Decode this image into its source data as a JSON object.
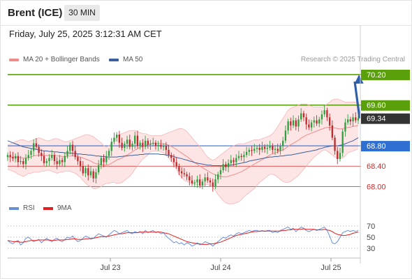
{
  "header": {
    "instrument": "Brent (ICE)",
    "interval": "30 MIN",
    "datetime": "Friday, July 25, 2025 3:12:31 AM CET"
  },
  "legend": {
    "ma20": {
      "label": "MA 20 + Bollinger Bands",
      "color": "#f08c8c"
    },
    "ma50": {
      "label": "MA 50",
      "color": "#3a5f9c"
    },
    "credit": "Research © 2025 Trading Central"
  },
  "rsi_legend": {
    "rsi": {
      "label": "RSI",
      "color": "#6a8fd8"
    },
    "ma9": {
      "label": "9MA",
      "color": "#e02020"
    }
  },
  "colors": {
    "resistance": "#5aa00a",
    "current": "#333333",
    "pivot": "#2f6fd1",
    "support": "#cc2b2b",
    "candle_up": "#2e9e3e",
    "candle_down": "#c0282a",
    "band_fill": "#fde0e0",
    "arrow": "#2f5fa8"
  },
  "chart_data": [
    {
      "type": "candlestick",
      "title": "",
      "ylim": [
        67.8,
        70.35
      ],
      "x_ticks": [
        "Jul 23",
        "Jul 24",
        "Jul 25"
      ],
      "levels": [
        {
          "value": 70.2,
          "label": "70.20",
          "kind": "resistance"
        },
        {
          "value": 69.6,
          "label": "69.60",
          "kind": "resistance"
        },
        {
          "value": 69.34,
          "label": "69.34",
          "kind": "current"
        },
        {
          "value": 68.8,
          "label": "68.80",
          "kind": "pivot"
        },
        {
          "value": 68.4,
          "label": "68.40",
          "kind": "support"
        },
        {
          "value": 68.0,
          "label": "68.00",
          "kind": "support"
        }
      ],
      "close": [
        68.62,
        68.58,
        68.55,
        68.6,
        68.48,
        68.5,
        68.44,
        68.56,
        68.62,
        68.7,
        68.85,
        68.78,
        68.66,
        68.6,
        68.46,
        68.5,
        68.56,
        68.62,
        68.5,
        68.44,
        68.52,
        68.48,
        68.6,
        68.7,
        68.82,
        68.7,
        68.58,
        68.5,
        68.4,
        68.26,
        68.36,
        68.22,
        68.3,
        68.16,
        68.28,
        68.42,
        68.56,
        68.48,
        68.6,
        68.7,
        68.88,
        68.96,
        69.02,
        68.86,
        68.76,
        68.84,
        68.92,
        68.78,
        68.84,
        69.0,
        68.8,
        68.86,
        68.78,
        68.9,
        68.82,
        68.84,
        68.86,
        68.8,
        68.82,
        68.78,
        68.8,
        68.72,
        68.62,
        68.56,
        68.48,
        68.4,
        68.3,
        68.26,
        68.24,
        68.2,
        68.12,
        68.06,
        68.08,
        68.14,
        68.02,
        68.1,
        68.18,
        68.12,
        68.08,
        68.0,
        68.14,
        68.24,
        68.32,
        68.44,
        68.38,
        68.46,
        68.52,
        68.48,
        68.56,
        68.6,
        68.58,
        68.62,
        68.68,
        68.72,
        68.7,
        68.74,
        68.76,
        68.72,
        68.78,
        68.74,
        68.76,
        68.8,
        68.72,
        68.74,
        68.7,
        68.8,
        68.9,
        69.1,
        69.28,
        69.2,
        69.3,
        69.18,
        69.32,
        69.44,
        69.36,
        69.22,
        69.16,
        69.26,
        69.3,
        69.24,
        69.32,
        69.42,
        69.5,
        69.36,
        69.2,
        68.96,
        68.7,
        68.54,
        68.66,
        69.08,
        69.26,
        69.32,
        69.28,
        69.36,
        69.3,
        69.34
      ],
      "ma20": [
        68.58,
        68.58,
        68.58,
        68.58,
        68.57,
        68.57,
        68.56,
        68.56,
        68.57,
        68.58,
        68.6,
        68.61,
        68.62,
        68.62,
        68.61,
        68.61,
        68.61,
        68.61,
        68.61,
        68.6,
        68.6,
        68.59,
        68.59,
        68.59,
        68.6,
        68.6,
        68.6,
        68.59,
        68.58,
        68.56,
        68.54,
        68.52,
        68.5,
        68.47,
        68.45,
        68.44,
        68.43,
        68.42,
        68.42,
        68.43,
        68.46,
        68.49,
        68.52,
        68.54,
        68.56,
        68.59,
        68.62,
        68.65,
        68.68,
        68.72,
        68.74,
        68.77,
        68.79,
        68.81,
        68.82,
        68.84,
        68.85,
        68.85,
        68.85,
        68.84,
        68.84,
        68.83,
        68.81,
        68.79,
        68.76,
        68.73,
        68.69,
        68.66,
        68.62,
        68.59,
        68.55,
        68.51,
        68.47,
        68.44,
        68.4,
        68.37,
        68.34,
        68.31,
        68.28,
        68.25,
        68.23,
        68.21,
        68.2,
        68.19,
        68.19,
        68.2,
        68.22,
        68.23,
        68.25,
        68.27,
        68.29,
        68.32,
        68.35,
        68.38,
        68.41,
        68.44,
        68.47,
        68.5,
        68.53,
        68.56,
        68.59,
        68.62,
        68.64,
        68.66,
        68.68,
        68.7,
        68.72,
        68.75,
        68.79,
        68.82,
        68.85,
        68.88,
        68.91,
        68.95,
        68.98,
        69.01,
        69.03,
        69.05,
        69.07,
        69.09,
        69.11,
        69.13,
        69.15,
        69.16,
        69.16,
        69.16,
        69.15,
        69.14,
        69.13,
        69.14,
        69.15,
        69.16,
        69.17,
        69.18,
        69.19,
        69.2
      ],
      "upper_band": [
        68.82,
        68.84,
        68.86,
        68.88,
        68.9,
        68.92,
        68.92,
        68.9,
        68.88,
        68.9,
        68.92,
        68.94,
        68.96,
        68.94,
        68.92,
        68.9,
        68.9,
        68.92,
        68.94,
        68.94,
        68.92,
        68.9,
        68.88,
        68.88,
        68.9,
        68.92,
        68.94,
        68.96,
        68.98,
        69.0,
        69.02,
        69.02,
        69.0,
        68.98,
        68.94,
        68.9,
        68.86,
        68.8,
        68.78,
        68.8,
        68.84,
        68.9,
        68.98,
        69.02,
        69.04,
        69.06,
        69.08,
        69.1,
        69.1,
        69.1,
        69.08,
        69.06,
        69.04,
        69.04,
        69.02,
        69.0,
        69.0,
        69.0,
        69.0,
        69.0,
        69.02,
        69.04,
        69.06,
        69.08,
        69.1,
        69.12,
        69.14,
        69.14,
        69.12,
        69.08,
        69.02,
        68.96,
        68.9,
        68.84,
        68.78,
        68.72,
        68.64,
        68.58,
        68.54,
        68.52,
        68.54,
        68.58,
        68.62,
        68.66,
        68.7,
        68.74,
        68.78,
        68.8,
        68.82,
        68.84,
        68.84,
        68.84,
        68.86,
        68.88,
        68.9,
        68.92,
        68.92,
        68.92,
        68.94,
        68.96,
        68.98,
        69.0,
        69.04,
        69.1,
        69.18,
        69.26,
        69.34,
        69.42,
        69.5,
        69.54,
        69.56,
        69.58,
        69.6,
        69.62,
        69.62,
        69.62,
        69.6,
        69.58,
        69.56,
        69.56,
        69.56,
        69.56,
        69.58,
        69.62,
        69.66,
        69.7,
        69.72,
        69.72,
        69.7,
        69.68,
        69.66,
        69.66,
        69.66,
        69.66,
        69.66,
        69.66
      ],
      "lower_band": [
        68.34,
        68.32,
        68.3,
        68.28,
        68.24,
        68.22,
        68.2,
        68.22,
        68.26,
        68.26,
        68.28,
        68.28,
        68.28,
        68.3,
        68.3,
        68.32,
        68.32,
        68.3,
        68.28,
        68.26,
        68.28,
        68.28,
        68.3,
        68.3,
        68.3,
        68.28,
        68.26,
        68.22,
        68.18,
        68.12,
        68.06,
        68.02,
        68.0,
        67.96,
        67.96,
        67.98,
        68.0,
        68.04,
        68.06,
        68.06,
        68.08,
        68.08,
        68.06,
        68.06,
        68.08,
        68.12,
        68.16,
        68.2,
        68.26,
        68.34,
        68.4,
        68.48,
        68.54,
        68.58,
        68.62,
        68.68,
        68.7,
        68.7,
        68.7,
        68.68,
        68.66,
        68.62,
        68.56,
        68.5,
        68.42,
        68.34,
        68.24,
        68.18,
        68.12,
        68.1,
        68.08,
        68.06,
        68.04,
        68.04,
        68.02,
        68.02,
        68.04,
        68.04,
        68.02,
        67.98,
        67.92,
        67.84,
        67.78,
        67.72,
        67.68,
        67.66,
        67.66,
        67.66,
        67.68,
        67.7,
        67.74,
        67.8,
        67.84,
        67.88,
        67.92,
        67.96,
        68.02,
        68.08,
        68.12,
        68.16,
        68.2,
        68.24,
        68.24,
        68.22,
        68.18,
        68.14,
        68.1,
        68.08,
        68.08,
        68.1,
        68.14,
        68.18,
        68.22,
        68.28,
        68.34,
        68.4,
        68.46,
        68.52,
        68.58,
        68.62,
        68.66,
        68.7,
        68.72,
        68.7,
        68.66,
        68.62,
        68.58,
        68.56,
        68.56,
        68.56,
        68.6,
        68.66,
        68.68,
        68.7,
        68.72,
        68.74
      ],
      "ma50": [
        68.9,
        68.88,
        68.86,
        68.84,
        68.82,
        68.8,
        68.78,
        68.77,
        68.76,
        68.75,
        68.74,
        68.73,
        68.72,
        68.71,
        68.7,
        68.7,
        68.69,
        68.69,
        68.68,
        68.68,
        68.67,
        68.67,
        68.66,
        68.66,
        68.66,
        68.65,
        68.65,
        68.64,
        68.64,
        68.63,
        68.63,
        68.62,
        68.62,
        68.61,
        68.6,
        68.6,
        68.59,
        68.59,
        68.58,
        68.58,
        68.58,
        68.58,
        68.58,
        68.59,
        68.59,
        68.6,
        68.6,
        68.61,
        68.61,
        68.62,
        68.62,
        68.63,
        68.63,
        68.64,
        68.64,
        68.64,
        68.64,
        68.64,
        68.64,
        68.63,
        68.63,
        68.62,
        68.61,
        68.6,
        68.59,
        68.57,
        68.56,
        68.55,
        68.53,
        68.52,
        68.5,
        68.49,
        68.47,
        68.46,
        68.45,
        68.44,
        68.43,
        68.42,
        68.42,
        68.41,
        68.41,
        68.41,
        68.41,
        68.41,
        68.41,
        68.42,
        68.42,
        68.43,
        68.44,
        68.45,
        68.46,
        68.47,
        68.48,
        68.5,
        68.51,
        68.52,
        68.53,
        68.54,
        68.55,
        68.56,
        68.57,
        68.58,
        68.58,
        68.59,
        68.59,
        68.6,
        68.6,
        68.61,
        68.62,
        68.62,
        68.63,
        68.64,
        68.65,
        68.66,
        68.67,
        68.68,
        68.69,
        68.7,
        68.71,
        68.72,
        68.74,
        68.75,
        68.77,
        68.78,
        68.79,
        68.8,
        68.8,
        68.8,
        68.81,
        68.82,
        68.84,
        68.86,
        68.88,
        68.9,
        68.93,
        68.96
      ]
    },
    {
      "type": "line",
      "title": "",
      "ylim": [
        20,
        80
      ],
      "y_ticks": [
        70,
        50,
        30
      ],
      "rsi": [
        44,
        40,
        38,
        42,
        44,
        36,
        40,
        48,
        50,
        46,
        42,
        44,
        46,
        40,
        44,
        48,
        44,
        42,
        46,
        48,
        44,
        42,
        46,
        50,
        48,
        52,
        46,
        42,
        44,
        48,
        52,
        50,
        46,
        48,
        52,
        56,
        54,
        52,
        50,
        54,
        58,
        62,
        60,
        56,
        58,
        60,
        62,
        58,
        56,
        60,
        58,
        60,
        56,
        62,
        58,
        60,
        62,
        58,
        60,
        56,
        58,
        52,
        48,
        44,
        40,
        42,
        38,
        40,
        36,
        40,
        38,
        34,
        36,
        40,
        36,
        38,
        42,
        40,
        38,
        34,
        38,
        42,
        46,
        50,
        48,
        52,
        54,
        52,
        56,
        58,
        56,
        58,
        60,
        62,
        60,
        62,
        62,
        60,
        62,
        60,
        62,
        62,
        58,
        60,
        58,
        62,
        64,
        66,
        68,
        64,
        66,
        60,
        64,
        68,
        66,
        62,
        60,
        62,
        64,
        62,
        64,
        66,
        68,
        62,
        52,
        40,
        38,
        42,
        50,
        58,
        60,
        62,
        60,
        62,
        60,
        62
      ],
      "ma9": [
        44,
        43,
        42,
        42,
        42,
        41,
        41,
        42,
        43,
        44,
        44,
        44,
        45,
        45,
        45,
        45,
        45,
        44,
        44,
        45,
        45,
        45,
        45,
        46,
        46,
        47,
        47,
        46,
        46,
        46,
        47,
        47,
        48,
        48,
        49,
        50,
        51,
        51,
        51,
        52,
        53,
        54,
        55,
        56,
        56,
        57,
        58,
        58,
        58,
        58,
        58,
        59,
        59,
        59,
        59,
        59,
        59,
        59,
        59,
        59,
        58,
        57,
        56,
        54,
        52,
        50,
        48,
        46,
        44,
        42,
        41,
        40,
        39,
        38,
        38,
        37,
        37,
        37,
        38,
        38,
        39,
        40,
        41,
        43,
        45,
        47,
        49,
        51,
        53,
        54,
        55,
        56,
        57,
        58,
        59,
        60,
        60,
        61,
        61,
        61,
        61,
        61,
        61,
        61,
        61,
        61,
        62,
        62,
        63,
        63,
        64,
        64,
        64,
        64,
        65,
        64,
        64,
        64,
        64,
        63,
        63,
        63,
        64,
        63,
        62,
        60,
        57,
        55,
        54,
        53,
        53,
        54,
        55,
        57,
        58,
        59
      ]
    }
  ]
}
